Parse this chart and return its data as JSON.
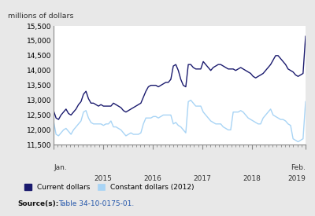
{
  "title_ylabel": "millions of dollars",
  "ylim": [
    11500,
    15500
  ],
  "yticks": [
    11500,
    12000,
    12500,
    13000,
    13500,
    14000,
    14500,
    15000,
    15500
  ],
  "background_color": "#e8e8e8",
  "plot_bg": "#ffffff",
  "current_dollars_color": "#1a1a6e",
  "constant_dollars_color": "#a8d4f5",
  "current_dollars_label": "Current dollars",
  "constant_dollars_label": "Constant dollars (2012)",
  "current_dollars": [
    12650,
    12400,
    12350,
    12500,
    12600,
    12700,
    12550,
    12500,
    12600,
    12700,
    12850,
    12950,
    13200,
    13300,
    13050,
    12900,
    12900,
    12850,
    12800,
    12850,
    12800,
    12800,
    12800,
    12800,
    12900,
    12850,
    12800,
    12750,
    12650,
    12600,
    12650,
    12700,
    12750,
    12800,
    12850,
    12900,
    13100,
    13300,
    13450,
    13500,
    13500,
    13500,
    13450,
    13500,
    13550,
    13600,
    13600,
    13700,
    14150,
    14200,
    14000,
    13700,
    13500,
    13450,
    14200,
    14200,
    14100,
    14050,
    14050,
    14050,
    14300,
    14200,
    14100,
    14000,
    14100,
    14150,
    14200,
    14200,
    14150,
    14100,
    14050,
    14050,
    14050,
    14000,
    14050,
    14100,
    14050,
    14000,
    13950,
    13900,
    13800,
    13750,
    13800,
    13850,
    13900,
    14000,
    14100,
    14200,
    14350,
    14500,
    14500,
    14400,
    14300,
    14200,
    14050,
    14000,
    13950,
    13850,
    13800,
    13850,
    13900,
    15150
  ],
  "constant_dollars": [
    12300,
    11850,
    11800,
    11900,
    12000,
    12050,
    11950,
    11850,
    12000,
    12100,
    12200,
    12300,
    12600,
    12650,
    12400,
    12250,
    12200,
    12200,
    12200,
    12200,
    12150,
    12200,
    12200,
    12300,
    12100,
    12100,
    12050,
    12000,
    11900,
    11800,
    11850,
    11900,
    11850,
    11850,
    11850,
    11900,
    12200,
    12400,
    12400,
    12400,
    12450,
    12450,
    12400,
    12450,
    12500,
    12500,
    12500,
    12500,
    12200,
    12250,
    12150,
    12100,
    12000,
    11900,
    12950,
    13000,
    12900,
    12800,
    12800,
    12800,
    12600,
    12500,
    12400,
    12300,
    12250,
    12200,
    12200,
    12200,
    12100,
    12050,
    12000,
    12000,
    12600,
    12600,
    12600,
    12650,
    12600,
    12500,
    12400,
    12350,
    12300,
    12250,
    12200,
    12200,
    12400,
    12500,
    12600,
    12700,
    12500,
    12450,
    12400,
    12350,
    12350,
    12300,
    12200,
    12150,
    11700,
    11650,
    11600,
    11650,
    11700,
    12950
  ]
}
